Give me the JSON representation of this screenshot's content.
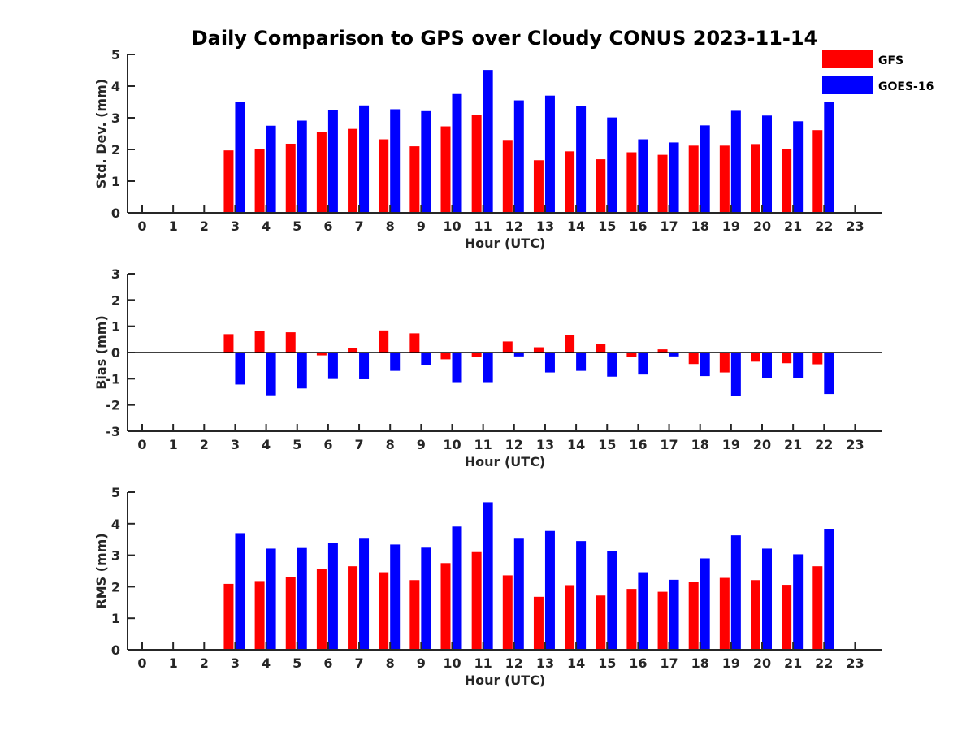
{
  "chart_data": {
    "title": "Daily Comparison to GPS over Cloudy CONUS 2023-11-14",
    "type": "bar",
    "legend": {
      "placement": "top-right",
      "entries": [
        {
          "name": "GFS",
          "color": "#ff0000"
        },
        {
          "name": "GOES-16",
          "color": "#0000ff"
        }
      ]
    },
    "colors": {
      "series_0": "#ff0000",
      "series_1": "#0000ff",
      "axis": "#262626",
      "zero_line": "#000000"
    },
    "panels": [
      {
        "ylabel": "Std. Dev. (mm)",
        "xlabel": "Hour (UTC)",
        "ylim": [
          0,
          5
        ],
        "yticks": [
          0,
          1,
          2,
          3,
          4,
          5
        ],
        "categories": [
          "0",
          "1",
          "2",
          "3",
          "4",
          "5",
          "6",
          "7",
          "8",
          "9",
          "10",
          "11",
          "12",
          "13",
          "14",
          "15",
          "16",
          "17",
          "18",
          "19",
          "20",
          "21",
          "22",
          "23"
        ],
        "series": [
          {
            "name": "GFS",
            "values": [
              null,
              null,
              null,
              1.97,
              2.01,
              2.18,
              2.55,
              2.65,
              2.32,
              2.1,
              2.73,
              3.09,
              2.3,
              1.66,
              1.94,
              1.69,
              1.91,
              1.83,
              2.12,
              2.12,
              2.17,
              2.02,
              2.61,
              null
            ]
          },
          {
            "name": "GOES-16",
            "values": [
              null,
              null,
              null,
              3.49,
              2.75,
              2.91,
              3.24,
              3.39,
              3.27,
              3.21,
              3.75,
              4.51,
              3.55,
              3.7,
              3.37,
              3.01,
              2.32,
              2.22,
              2.76,
              3.22,
              3.07,
              2.89,
              3.49,
              null
            ]
          }
        ]
      },
      {
        "ylabel": "Bias (mm)",
        "xlabel": "Hour (UTC)",
        "ylim": [
          -3,
          3
        ],
        "yticks": [
          -3,
          -2,
          -1,
          0,
          1,
          2,
          3
        ],
        "zero_line": true,
        "categories": [
          "0",
          "1",
          "2",
          "3",
          "4",
          "5",
          "6",
          "7",
          "8",
          "9",
          "10",
          "11",
          "12",
          "13",
          "14",
          "15",
          "16",
          "17",
          "18",
          "19",
          "20",
          "21",
          "22",
          "23"
        ],
        "series": [
          {
            "name": "GFS",
            "values": [
              null,
              null,
              null,
              0.7,
              0.81,
              0.77,
              -0.11,
              0.18,
              0.84,
              0.73,
              -0.26,
              -0.18,
              0.42,
              0.2,
              0.67,
              0.33,
              -0.18,
              0.12,
              -0.44,
              -0.76,
              -0.35,
              -0.41,
              -0.45,
              null
            ]
          },
          {
            "name": "GOES-16",
            "values": [
              null,
              null,
              null,
              -1.22,
              -1.63,
              -1.37,
              -1.01,
              -1.02,
              -0.7,
              -0.48,
              -1.13,
              -1.13,
              -0.15,
              -0.76,
              -0.7,
              -0.92,
              -0.84,
              -0.15,
              -0.9,
              -1.66,
              -0.98,
              -0.98,
              -1.58,
              null
            ]
          }
        ]
      },
      {
        "ylabel": "RMS (mm)",
        "xlabel": "Hour (UTC)",
        "ylim": [
          0,
          5
        ],
        "yticks": [
          0,
          1,
          2,
          3,
          4,
          5
        ],
        "categories": [
          "0",
          "1",
          "2",
          "3",
          "4",
          "5",
          "6",
          "7",
          "8",
          "9",
          "10",
          "11",
          "12",
          "13",
          "14",
          "15",
          "16",
          "17",
          "18",
          "19",
          "20",
          "21",
          "22",
          "23"
        ],
        "series": [
          {
            "name": "GFS",
            "values": [
              null,
              null,
              null,
              2.09,
              2.18,
              2.31,
              2.57,
              2.65,
              2.46,
              2.21,
              2.75,
              3.1,
              2.36,
              1.68,
              2.05,
              1.72,
              1.93,
              1.84,
              2.16,
              2.28,
              2.21,
              2.06,
              2.65,
              null
            ]
          },
          {
            "name": "GOES-16",
            "values": [
              null,
              null,
              null,
              3.7,
              3.21,
              3.23,
              3.39,
              3.55,
              3.34,
              3.24,
              3.91,
              4.68,
              3.55,
              3.77,
              3.45,
              3.13,
              2.46,
              2.22,
              2.9,
              3.63,
              3.21,
              3.03,
              3.84,
              null
            ]
          }
        ]
      }
    ]
  }
}
